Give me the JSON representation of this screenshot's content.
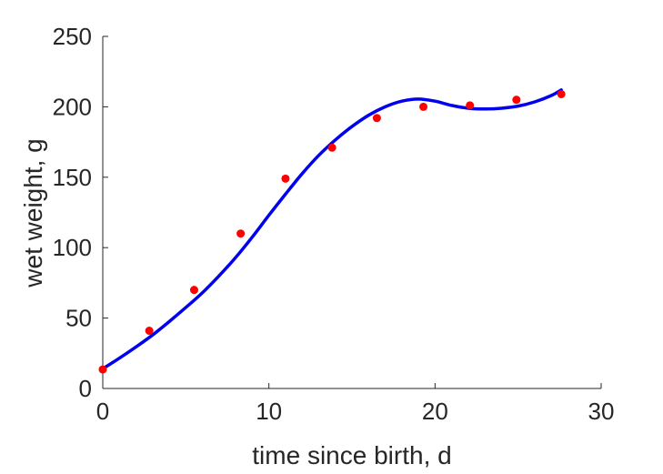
{
  "chart_data": {
    "type": "scatter",
    "title": "",
    "xlabel": "time since birth, d",
    "ylabel": "wet weight, g",
    "xlim": [
      0,
      30
    ],
    "ylim": [
      0,
      250
    ],
    "xticks": [
      0,
      10,
      20,
      30
    ],
    "yticks": [
      0,
      50,
      100,
      150,
      200,
      250
    ],
    "grid": false,
    "legend": "none",
    "series": [
      {
        "type": "scatter",
        "color": "#ff0000",
        "x": [
          0,
          2.8,
          5.5,
          8.3,
          11.0,
          13.8,
          16.5,
          19.3,
          22.1,
          24.9,
          27.6
        ],
        "y": [
          13.5,
          41,
          70,
          110,
          149,
          171,
          192,
          200,
          201,
          205,
          209
        ]
      },
      {
        "type": "line",
        "color": "#0000ee",
        "x": [
          0,
          1,
          2,
          3,
          4,
          5,
          6,
          7,
          8,
          9,
          10,
          11,
          12,
          13,
          14,
          15,
          16,
          17,
          18,
          19,
          20,
          21,
          22,
          23,
          24,
          25,
          26,
          27,
          27.6
        ],
        "y": [
          14,
          21.5,
          29.5,
          38,
          47.5,
          57.5,
          68,
          80,
          93,
          107.5,
          123,
          138,
          152.5,
          165.5,
          176.5,
          186,
          194,
          200,
          204,
          205.5,
          204,
          201,
          199,
          198.5,
          199,
          200.5,
          203.5,
          208,
          212
        ]
      }
    ]
  }
}
